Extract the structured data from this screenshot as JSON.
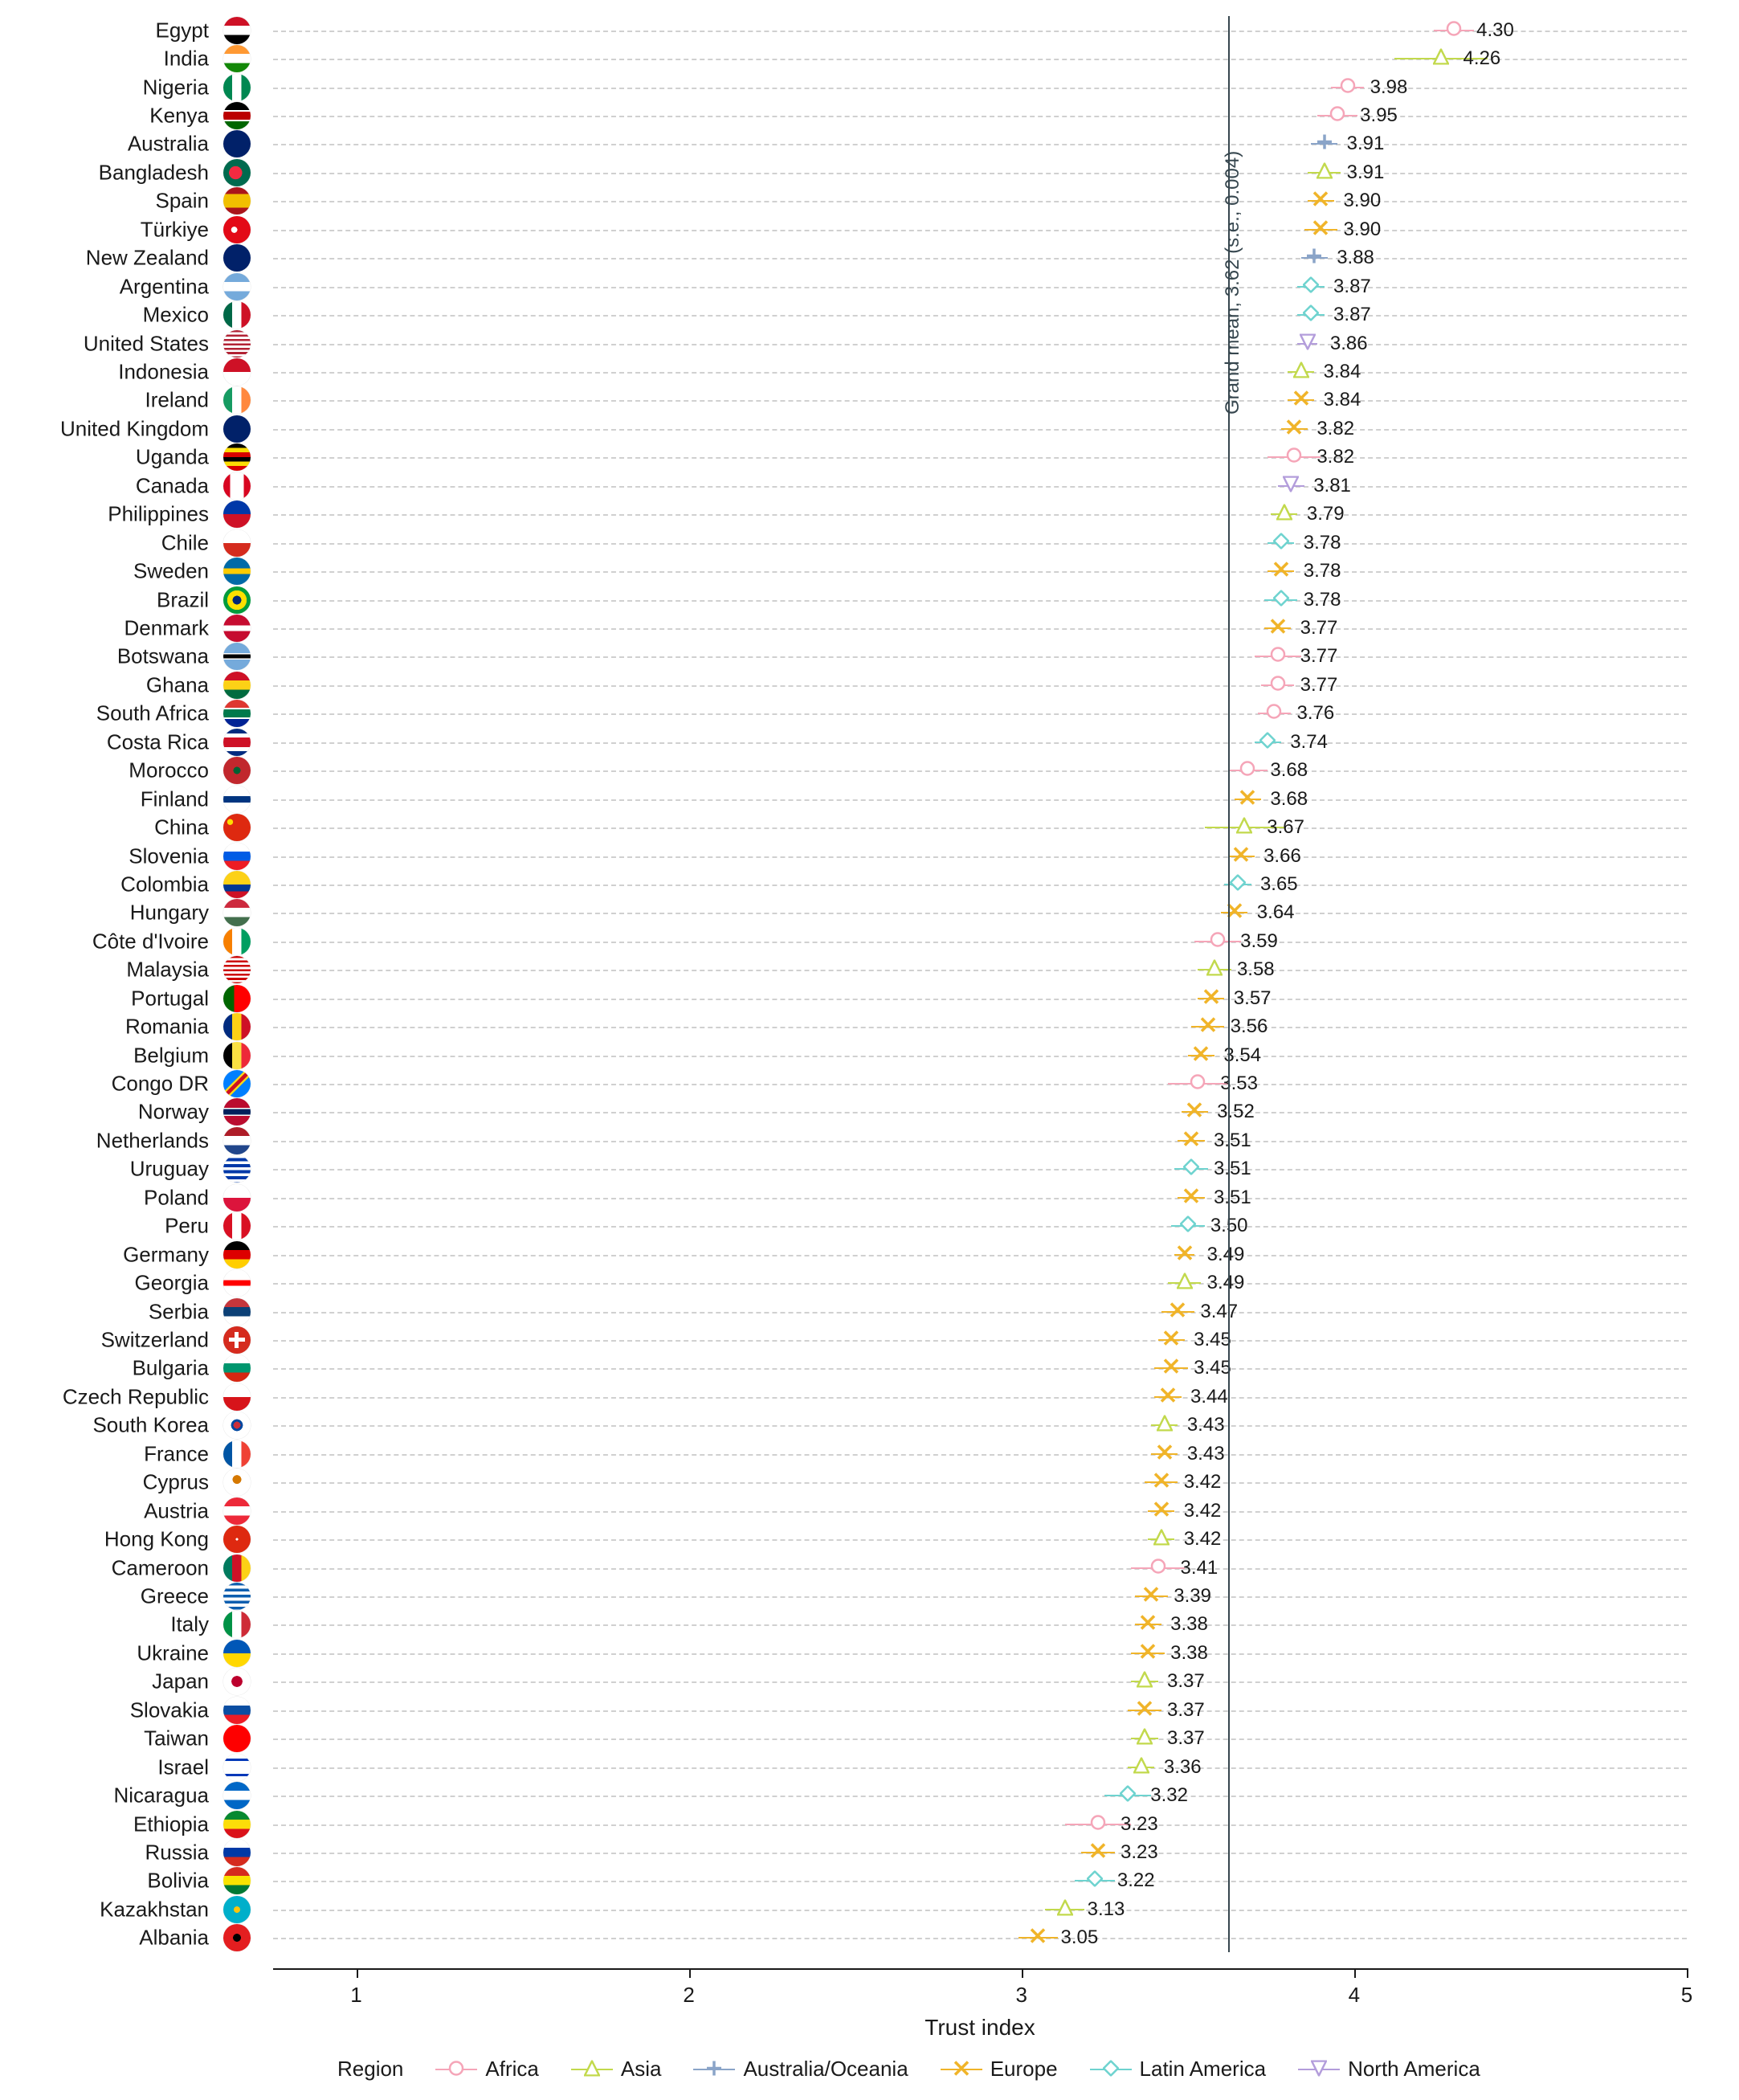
{
  "chart": {
    "type": "dotplot",
    "background_color": "#ffffff",
    "grid_color": "#d0d0d0",
    "axis_color": "#1a1a1a",
    "label_fontsize": 26,
    "value_fontsize": 24,
    "axis_title_fontsize": 28,
    "x_axis_title": "Trust index",
    "xlim": [
      0.75,
      5.0
    ],
    "xticks": [
      1,
      2,
      3,
      4,
      5
    ],
    "grand_mean": {
      "value": 3.62,
      "label": "Grand mean, 3.62 (s.e., 0.004)",
      "color": "#37474f"
    },
    "regions": {
      "Africa": {
        "color": "#f5a5b8",
        "marker": "circle"
      },
      "Asia": {
        "color": "#c2d94c",
        "marker": "triangle"
      },
      "Australia/Oceania": {
        "color": "#8aa4c8",
        "marker": "plus"
      },
      "Europe": {
        "color": "#f0b429",
        "marker": "x"
      },
      "Latin America": {
        "color": "#6ed3cf",
        "marker": "diamond"
      },
      "North America": {
        "color": "#b39ddb",
        "marker": "triangle-down"
      }
    },
    "legend_title": "Region",
    "legend_order": [
      "Africa",
      "Asia",
      "Australia/Oceania",
      "Europe",
      "Latin America",
      "North America"
    ],
    "marker_size": 20,
    "flag_bg": {
      "Egypt": "linear-gradient(#ce1126 33%,#fff 33% 66%,#000 66%)",
      "India": "linear-gradient(#ff9933 33%,#fff 33% 66%,#138808 66%)",
      "Nigeria": "linear-gradient(90deg,#008751 33%,#fff 33% 66%,#008751 66%)",
      "Kenya": "linear-gradient(#000 30%,#fff 30% 35%,#b00 35% 65%,#fff 65% 70%,#006600 70%)",
      "Australia": "linear-gradient(135deg,#012169 60%,#012169 60%),radial-gradient(circle at 30% 30%,#e4002b 0 10%,transparent 11%)",
      "Bangladesh": "radial-gradient(circle at 45% 50%,#f42a41 0 32%,#006a4e 33%)",
      "Spain": "linear-gradient(#aa151b 25%,#f1bf00 25% 75%,#aa151b 75%)",
      "Türkiye": "radial-gradient(circle at 40% 50%,#fff 0 14%,transparent 15%),#e30a17",
      "New Zealand": "linear-gradient(135deg,#012169 100%,#012169 100%)",
      "Argentina": "linear-gradient(#75aadb 33%,#fff 33% 66%,#75aadb 66%)",
      "Mexico": "linear-gradient(90deg,#006847 33%,#fff 33% 66%,#ce1126 66%)",
      "United States": "repeating-linear-gradient(#b22234 0 8%,#fff 8% 16%)",
      "Indonesia": "linear-gradient(#ce1126 50%,#fff 50%)",
      "Ireland": "linear-gradient(90deg,#169b62 33%,#fff 33% 66%,#ff883e 66%)",
      "United Kingdom": "conic-gradient(#012169 0 100%)",
      "Uganda": "repeating-linear-gradient(#000 0 16%,#fcdc04 16% 33%,#d90000 33% 50%)",
      "Canada": "linear-gradient(90deg,#d80621 25%,#fff 25% 75%,#d80621 75%)",
      "Philippines": "linear-gradient(#0038a8 50%,#ce1126 50%)",
      "Chile": "linear-gradient(#fff 50%,#d52b1e 50%)",
      "Sweden": "linear-gradient(#006aa7 40%,#fecc00 40% 60%,#006aa7 60%)",
      "Brazil": "radial-gradient(circle,#002776 0 22%,#fedf00 23% 50%,#009c3b 51%)",
      "Denmark": "linear-gradient(#c60c30 40%,#fff 40% 60%,#c60c30 60%)",
      "Botswana": "linear-gradient(#75aadb 38%,#fff 38% 42%,#000 42% 58%,#fff 58% 62%,#75aadb 62%)",
      "Ghana": "linear-gradient(#ce1126 33%,#fcd116 33% 66%,#006b3f 66%)",
      "South Africa": "linear-gradient(#de3831 30%,#fff 30% 35%,#007a4d 35% 65%,#fff 65% 70%,#002395 70%)",
      "Costa Rica": "linear-gradient(#002b7f 17%,#fff 17% 33%,#ce1126 33% 67%,#fff 67% 83%,#002b7f 83%)",
      "Morocco": "radial-gradient(circle,#006233 0 18%,#c1272d 19%)",
      "Finland": "linear-gradient(#fff 38%,#003580 38% 62%,#fff 62%)",
      "China": "radial-gradient(circle at 25% 30%,#ffde00 0 10%,transparent 11%),#de2910",
      "Slovenia": "linear-gradient(#fff 33%,#005ce5 33% 66%,#ed1c24 66%)",
      "Colombia": "linear-gradient(#fcd116 50%,#003893 50% 75%,#ce1126 75%)",
      "Hungary": "linear-gradient(#cd2a3e 33%,#fff 33% 66%,#436f4d 66%)",
      "Côte d'Ivoire": "linear-gradient(90deg,#f77f00 33%,#fff 33% 66%,#009e60 66%)",
      "Malaysia": "repeating-linear-gradient(#cc0001 0 8%,#fff 8% 16%)",
      "Portugal": "linear-gradient(90deg,#006600 40%,#ff0000 40%)",
      "Romania": "linear-gradient(90deg,#002b7f 33%,#fcd116 33% 66%,#ce1126 66%)",
      "Belgium": "linear-gradient(90deg,#000 33%,#fae042 33% 66%,#ed2939 66%)",
      "Congo DR": "linear-gradient(135deg,#007fff 40%,#f7d618 40% 45%,#ce1021 45% 55%,#f7d618 55% 60%,#007fff 60%)",
      "Norway": "linear-gradient(#ba0c2f 35%,#fff 35% 40%,#00205b 40% 60%,#fff 60% 65%,#ba0c2f 65%)",
      "Netherlands": "linear-gradient(#ae1c28 33%,#fff 33% 66%,#21468b 66%)",
      "Uruguay": "repeating-linear-gradient(#fff 0 11%,#0038a8 11% 22%)",
      "Poland": "linear-gradient(#fff 50%,#dc143c 50%)",
      "Peru": "linear-gradient(90deg,#d91023 33%,#fff 33% 66%,#d91023 66%)",
      "Germany": "linear-gradient(#000 33%,#dd0000 33% 66%,#ffce00 66%)",
      "Georgia": "linear-gradient(#fff 40%,#ff0000 40% 60%,#fff 60%)",
      "Serbia": "linear-gradient(#c6363c 33%,#0c4076 33% 66%,#fff 66%)",
      "Switzerland": "radial-gradient(circle,#fff 0 8%,transparent 9%),linear-gradient(#fff 42%,#fff 58%) center/60% 16% no-repeat,linear-gradient(#fff 42%,#fff 58%) center/16% 60% no-repeat,#d52b1e",
      "Bulgaria": "linear-gradient(#fff 33%,#00966e 33% 66%,#d62612 66%)",
      "Czech Republic": "linear-gradient(#fff 50%,#d7141a 50%)",
      "South Korea": "radial-gradient(circle,#cd2e3a 0 18%,#0047a0 18% 30%,#fff 31%)",
      "France": "linear-gradient(90deg,#0055a4 33%,#fff 33% 66%,#ef4135 66%)",
      "Cyprus": "radial-gradient(circle at 50% 40%,#d57800 0 20%,#fff 21%)",
      "Austria": "linear-gradient(#ed2939 33%,#fff 33% 66%,#ed2939 66%)",
      "Hong Kong": "radial-gradient(circle,#fff 0 6%,transparent 7%),#de2910",
      "Cameroon": "linear-gradient(90deg,#007a5e 33%,#ce1126 33% 66%,#fcd116 66%)",
      "Greece": "repeating-linear-gradient(#0d5eaf 0 11%,#fff 11% 22%)",
      "Italy": "linear-gradient(90deg,#009246 33%,#fff 33% 66%,#ce2b37 66%)",
      "Ukraine": "linear-gradient(#0057b7 50%,#ffd700 50%)",
      "Japan": "radial-gradient(circle,#bc002d 0 28%,#fff 29%)",
      "Slovakia": "linear-gradient(#fff 33%,#0b4ea2 33% 66%,#ee1c25 66%)",
      "Taiwan": "linear-gradient(#fe0000 100%,#fe0000 100%)",
      "Israel": "linear-gradient(#fff 18%,#0038b8 18% 26%,#fff 26% 74%,#0038b8 74% 82%,#fff 82%)",
      "Nicaragua": "linear-gradient(#0067c6 33%,#fff 33% 66%,#0067c6 66%)",
      "Ethiopia": "linear-gradient(#078930 33%,#fcdd09 33% 66%,#da121a 66%)",
      "Russia": "linear-gradient(#fff 33%,#0039a6 33% 66%,#d52b1e 66%)",
      "Bolivia": "linear-gradient(#d52b1e 33%,#f9e300 33% 66%,#007934 66%)",
      "Kazakhstan": "radial-gradient(circle,#fec50c 0 16%,#00afca 17%)",
      "Albania": "radial-gradient(circle,#000 0 20%,#e41e20 21%)"
    },
    "data": [
      {
        "country": "Egypt",
        "value": 4.3,
        "err": 0.06,
        "region": "Africa"
      },
      {
        "country": "India",
        "value": 4.26,
        "err": 0.14,
        "region": "Asia"
      },
      {
        "country": "Nigeria",
        "value": 3.98,
        "err": 0.05,
        "region": "Africa"
      },
      {
        "country": "Kenya",
        "value": 3.95,
        "err": 0.06,
        "region": "Africa"
      },
      {
        "country": "Australia",
        "value": 3.91,
        "err": 0.04,
        "region": "Australia/Oceania"
      },
      {
        "country": "Bangladesh",
        "value": 3.91,
        "err": 0.05,
        "region": "Asia"
      },
      {
        "country": "Spain",
        "value": 3.9,
        "err": 0.04,
        "region": "Europe"
      },
      {
        "country": "Türkiye",
        "value": 3.9,
        "err": 0.05,
        "region": "Europe"
      },
      {
        "country": "New Zealand",
        "value": 3.88,
        "err": 0.04,
        "region": "Australia/Oceania"
      },
      {
        "country": "Argentina",
        "value": 3.87,
        "err": 0.04,
        "region": "Latin America"
      },
      {
        "country": "Mexico",
        "value": 3.87,
        "err": 0.04,
        "region": "Latin America"
      },
      {
        "country": "United States",
        "value": 3.86,
        "err": 0.03,
        "region": "North America"
      },
      {
        "country": "Indonesia",
        "value": 3.84,
        "err": 0.04,
        "region": "Asia"
      },
      {
        "country": "Ireland",
        "value": 3.84,
        "err": 0.04,
        "region": "Europe"
      },
      {
        "country": "United Kingdom",
        "value": 3.82,
        "err": 0.04,
        "region": "Europe"
      },
      {
        "country": "Uganda",
        "value": 3.82,
        "err": 0.08,
        "region": "Africa"
      },
      {
        "country": "Canada",
        "value": 3.81,
        "err": 0.04,
        "region": "North America"
      },
      {
        "country": "Philippines",
        "value": 3.79,
        "err": 0.04,
        "region": "Asia"
      },
      {
        "country": "Chile",
        "value": 3.78,
        "err": 0.04,
        "region": "Latin America"
      },
      {
        "country": "Sweden",
        "value": 3.78,
        "err": 0.04,
        "region": "Europe"
      },
      {
        "country": "Brazil",
        "value": 3.78,
        "err": 0.05,
        "region": "Latin America"
      },
      {
        "country": "Denmark",
        "value": 3.77,
        "err": 0.04,
        "region": "Europe"
      },
      {
        "country": "Botswana",
        "value": 3.77,
        "err": 0.07,
        "region": "Africa"
      },
      {
        "country": "Ghana",
        "value": 3.77,
        "err": 0.05,
        "region": "Africa"
      },
      {
        "country": "South Africa",
        "value": 3.76,
        "err": 0.05,
        "region": "Africa"
      },
      {
        "country": "Costa Rica",
        "value": 3.74,
        "err": 0.04,
        "region": "Latin America"
      },
      {
        "country": "Morocco",
        "value": 3.68,
        "err": 0.06,
        "region": "Africa"
      },
      {
        "country": "Finland",
        "value": 3.68,
        "err": 0.04,
        "region": "Europe"
      },
      {
        "country": "China",
        "value": 3.67,
        "err": 0.12,
        "region": "Asia"
      },
      {
        "country": "Slovenia",
        "value": 3.66,
        "err": 0.04,
        "region": "Europe"
      },
      {
        "country": "Colombia",
        "value": 3.65,
        "err": 0.04,
        "region": "Latin America"
      },
      {
        "country": "Hungary",
        "value": 3.64,
        "err": 0.04,
        "region": "Europe"
      },
      {
        "country": "Côte d'Ivoire",
        "value": 3.59,
        "err": 0.07,
        "region": "Africa"
      },
      {
        "country": "Malaysia",
        "value": 3.58,
        "err": 0.05,
        "region": "Asia"
      },
      {
        "country": "Portugal",
        "value": 3.57,
        "err": 0.04,
        "region": "Europe"
      },
      {
        "country": "Romania",
        "value": 3.56,
        "err": 0.05,
        "region": "Europe"
      },
      {
        "country": "Belgium",
        "value": 3.54,
        "err": 0.04,
        "region": "Europe"
      },
      {
        "country": "Congo DR",
        "value": 3.53,
        "err": 0.09,
        "region": "Africa"
      },
      {
        "country": "Norway",
        "value": 3.52,
        "err": 0.04,
        "region": "Europe"
      },
      {
        "country": "Netherlands",
        "value": 3.51,
        "err": 0.04,
        "region": "Europe"
      },
      {
        "country": "Uruguay",
        "value": 3.51,
        "err": 0.05,
        "region": "Latin America"
      },
      {
        "country": "Poland",
        "value": 3.51,
        "err": 0.04,
        "region": "Europe"
      },
      {
        "country": "Peru",
        "value": 3.5,
        "err": 0.05,
        "region": "Latin America"
      },
      {
        "country": "Germany",
        "value": 3.49,
        "err": 0.03,
        "region": "Europe"
      },
      {
        "country": "Georgia",
        "value": 3.49,
        "err": 0.05,
        "region": "Asia"
      },
      {
        "country": "Serbia",
        "value": 3.47,
        "err": 0.05,
        "region": "Europe"
      },
      {
        "country": "Switzerland",
        "value": 3.45,
        "err": 0.04,
        "region": "Europe"
      },
      {
        "country": "Bulgaria",
        "value": 3.45,
        "err": 0.05,
        "region": "Europe"
      },
      {
        "country": "Czech Republic",
        "value": 3.44,
        "err": 0.04,
        "region": "Europe"
      },
      {
        "country": "South Korea",
        "value": 3.43,
        "err": 0.04,
        "region": "Asia"
      },
      {
        "country": "France",
        "value": 3.43,
        "err": 0.04,
        "region": "Europe"
      },
      {
        "country": "Cyprus",
        "value": 3.42,
        "err": 0.05,
        "region": "Europe"
      },
      {
        "country": "Austria",
        "value": 3.42,
        "err": 0.04,
        "region": "Europe"
      },
      {
        "country": "Hong Kong",
        "value": 3.42,
        "err": 0.04,
        "region": "Asia"
      },
      {
        "country": "Cameroon",
        "value": 3.41,
        "err": 0.08,
        "region": "Africa"
      },
      {
        "country": "Greece",
        "value": 3.39,
        "err": 0.05,
        "region": "Europe"
      },
      {
        "country": "Italy",
        "value": 3.38,
        "err": 0.04,
        "region": "Europe"
      },
      {
        "country": "Ukraine",
        "value": 3.38,
        "err": 0.05,
        "region": "Europe"
      },
      {
        "country": "Japan",
        "value": 3.37,
        "err": 0.04,
        "region": "Asia"
      },
      {
        "country": "Slovakia",
        "value": 3.37,
        "err": 0.05,
        "region": "Europe"
      },
      {
        "country": "Taiwan",
        "value": 3.37,
        "err": 0.04,
        "region": "Asia"
      },
      {
        "country": "Israel",
        "value": 3.36,
        "err": 0.04,
        "region": "Asia"
      },
      {
        "country": "Nicaragua",
        "value": 3.32,
        "err": 0.07,
        "region": "Latin America"
      },
      {
        "country": "Ethiopia",
        "value": 3.23,
        "err": 0.1,
        "region": "Africa"
      },
      {
        "country": "Russia",
        "value": 3.23,
        "err": 0.05,
        "region": "Europe"
      },
      {
        "country": "Bolivia",
        "value": 3.22,
        "err": 0.06,
        "region": "Latin America"
      },
      {
        "country": "Kazakhstan",
        "value": 3.13,
        "err": 0.06,
        "region": "Asia"
      },
      {
        "country": "Albania",
        "value": 3.05,
        "err": 0.06,
        "region": "Europe"
      }
    ]
  }
}
